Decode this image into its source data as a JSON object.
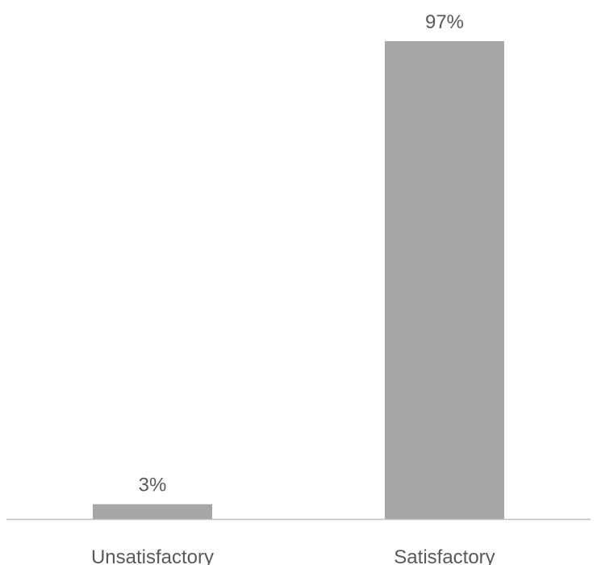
{
  "chart_data": {
    "type": "bar",
    "categories": [
      "Unsatisfactory",
      "Satisfactory"
    ],
    "values": [
      3,
      97
    ],
    "value_labels": [
      "3%",
      "97%"
    ],
    "unit": "%",
    "ylim": [
      0,
      100
    ],
    "grid": false,
    "legend": "none",
    "bar_color": "#a6a6a6",
    "axis_color": "#bfbfbf",
    "text_color": "#595959"
  }
}
